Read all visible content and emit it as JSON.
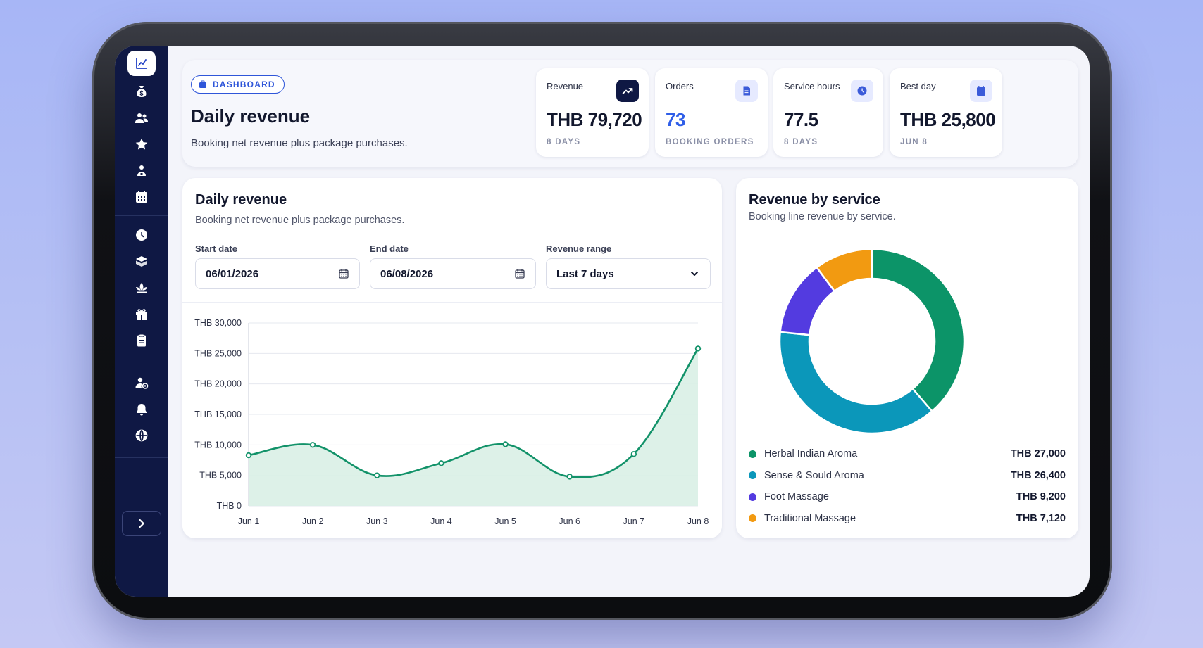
{
  "header": {
    "pill_label": "DASHBOARD",
    "title": "Daily revenue",
    "subtitle": "Booking net revenue plus package purchases."
  },
  "stats": [
    {
      "label": "Revenue",
      "value": "THB 79,720",
      "caption": "8 DAYS",
      "icon": "trend-up-icon"
    },
    {
      "label": "Orders",
      "value": "73",
      "caption": "BOOKING ORDERS",
      "icon": "document-icon"
    },
    {
      "label": "Service hours",
      "value": "77.5",
      "caption": "8 DAYS",
      "icon": "clock-icon"
    },
    {
      "label": "Best day",
      "value": "THB 25,800",
      "caption": "JUN 8",
      "icon": "calendar-icon"
    }
  ],
  "revenue_card": {
    "title": "Daily revenue",
    "subtitle": "Booking net revenue plus package purchases.",
    "filters": {
      "start_label": "Start date",
      "start_value": "06/01/2026",
      "end_label": "End date",
      "end_value": "06/08/2026",
      "range_label": "Revenue range",
      "range_value": "Last 7 days"
    }
  },
  "service_card": {
    "title": "Revenue by service",
    "subtitle": "Booking line revenue by service."
  },
  "sidebar": {
    "icons": [
      "chart-icon",
      "money-bag-icon",
      "users-icon",
      "star-icon",
      "therapist-icon",
      "calendar-grid-icon",
      "clock-icon",
      "package-icon",
      "lotus-icon",
      "gift-icon",
      "clipboard-icon",
      "user-settings-icon",
      "bell-icon",
      "globe-icon"
    ],
    "toggle": "chevron-right-icon"
  },
  "colors": {
    "line": "#129269",
    "area": "#d9f0e6",
    "sidebar": "#0f1844",
    "accent": "#2f5ee8"
  },
  "chart_data": [
    {
      "type": "area",
      "x": [
        "Jun 1",
        "Jun 2",
        "Jun 3",
        "Jun 4",
        "Jun 5",
        "Jun 6",
        "Jun 7",
        "Jun 8"
      ],
      "values": [
        8300,
        10000,
        5000,
        7000,
        10100,
        4800,
        8500,
        25800
      ],
      "yticks": [
        "THB 0",
        "THB 5,000",
        "THB 10,000",
        "THB 15,000",
        "THB 20,000",
        "THB 25,000",
        "THB 30,000"
      ],
      "ylim": [
        0,
        30000
      ],
      "grid": true
    },
    {
      "type": "pie",
      "donut": true,
      "series": [
        {
          "name": "Herbal Indian Aroma",
          "value": 27000,
          "label": "THB 27,000",
          "color": "#0c9468"
        },
        {
          "name": "Sense & Sould Aroma",
          "value": 26400,
          "label": "THB 26,400",
          "color": "#0b97ba"
        },
        {
          "name": "Foot Massage",
          "value": 9200,
          "label": "THB 9,200",
          "color": "#533be0"
        },
        {
          "name": "Traditional Massage",
          "value": 7120,
          "label": "THB 7,120",
          "color": "#f29a11"
        }
      ],
      "legend": "bottom"
    }
  ]
}
